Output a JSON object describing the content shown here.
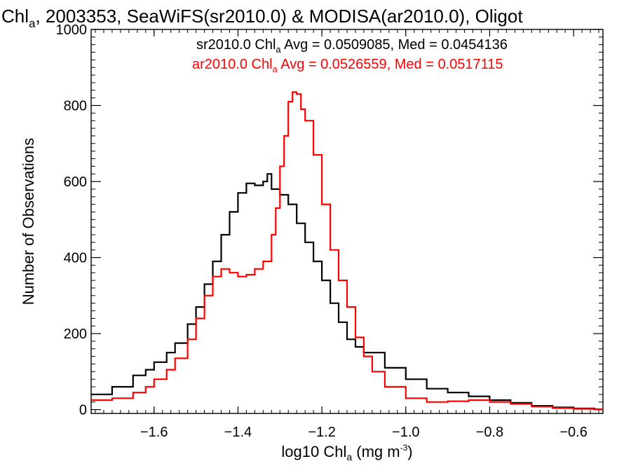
{
  "chart_data": {
    "type": "line",
    "title": {
      "main": "Chl",
      "sub": "a",
      "rest": ", 2003353, SeaWiFS(sr2010.0) & MODISA(ar2010.0), Oligot"
    },
    "xlabel": {
      "pre": "log10 Chl",
      "sub": "a",
      "mid": " (mg m",
      "sup": "-3",
      "post": ")"
    },
    "ylabel": "Number of Observations",
    "xlim": [
      -1.75,
      -0.53
    ],
    "ylim": [
      -10,
      1000
    ],
    "x_ticks": [
      -1.6,
      -1.4,
      -1.2,
      -1.0,
      -0.8,
      -0.6
    ],
    "x_tick_labels": [
      "−1.6",
      "−1.4",
      "−1.2",
      "−1.0",
      "−0.8",
      "−0.6"
    ],
    "y_ticks": [
      0,
      200,
      400,
      600,
      800,
      1000
    ],
    "y_tick_labels": [
      "0",
      "200",
      "400",
      "600",
      "800",
      "1000"
    ],
    "step": "histogram",
    "legend_position": "top-right",
    "series": [
      {
        "name": "sr2010.0",
        "color": "#000000",
        "legend": {
          "pre": "sr2010.0 Chl",
          "sub": "a",
          "post": " Avg = 0.0509085, Med = 0.0454136"
        },
        "points": [
          [
            -1.75,
            40
          ],
          [
            -1.7,
            60
          ],
          [
            -1.65,
            90
          ],
          [
            -1.62,
            105
          ],
          [
            -1.6,
            125
          ],
          [
            -1.57,
            150
          ],
          [
            -1.55,
            175
          ],
          [
            -1.52,
            225
          ],
          [
            -1.5,
            270
          ],
          [
            -1.48,
            330
          ],
          [
            -1.46,
            390
          ],
          [
            -1.44,
            460
          ],
          [
            -1.42,
            520
          ],
          [
            -1.4,
            570
          ],
          [
            -1.38,
            595
          ],
          [
            -1.36,
            590
          ],
          [
            -1.34,
            600
          ],
          [
            -1.33,
            620
          ],
          [
            -1.32,
            580
          ],
          [
            -1.3,
            565
          ],
          [
            -1.28,
            540
          ],
          [
            -1.26,
            490
          ],
          [
            -1.24,
            440
          ],
          [
            -1.22,
            390
          ],
          [
            -1.2,
            340
          ],
          [
            -1.18,
            280
          ],
          [
            -1.16,
            230
          ],
          [
            -1.14,
            185
          ],
          [
            -1.12,
            165
          ],
          [
            -1.1,
            150
          ],
          [
            -1.05,
            110
          ],
          [
            -1.0,
            80
          ],
          [
            -0.95,
            55
          ],
          [
            -0.9,
            45
          ],
          [
            -0.85,
            35
          ],
          [
            -0.8,
            25
          ],
          [
            -0.75,
            18
          ],
          [
            -0.7,
            10
          ],
          [
            -0.65,
            6
          ],
          [
            -0.6,
            3
          ],
          [
            -0.55,
            1
          ]
        ]
      },
      {
        "name": "ar2010.0",
        "color": "#ff0000",
        "legend": {
          "pre": "ar2010.0 Chl",
          "sub": "a",
          "post": " Avg = 0.0526559, Med = 0.0517115"
        },
        "points": [
          [
            -1.75,
            25
          ],
          [
            -1.7,
            30
          ],
          [
            -1.65,
            45
          ],
          [
            -1.62,
            60
          ],
          [
            -1.6,
            80
          ],
          [
            -1.57,
            105
          ],
          [
            -1.55,
            135
          ],
          [
            -1.52,
            185
          ],
          [
            -1.5,
            240
          ],
          [
            -1.48,
            300
          ],
          [
            -1.46,
            350
          ],
          [
            -1.44,
            370
          ],
          [
            -1.42,
            360
          ],
          [
            -1.4,
            350
          ],
          [
            -1.38,
            355
          ],
          [
            -1.36,
            370
          ],
          [
            -1.34,
            390
          ],
          [
            -1.32,
            460
          ],
          [
            -1.31,
            530
          ],
          [
            -1.3,
            640
          ],
          [
            -1.29,
            720
          ],
          [
            -1.28,
            810
          ],
          [
            -1.27,
            835
          ],
          [
            -1.26,
            830
          ],
          [
            -1.25,
            790
          ],
          [
            -1.24,
            760
          ],
          [
            -1.22,
            670
          ],
          [
            -1.2,
            540
          ],
          [
            -1.18,
            420
          ],
          [
            -1.16,
            340
          ],
          [
            -1.14,
            270
          ],
          [
            -1.12,
            190
          ],
          [
            -1.1,
            140
          ],
          [
            -1.08,
            100
          ],
          [
            -1.05,
            60
          ],
          [
            -1.0,
            30
          ],
          [
            -0.95,
            20
          ],
          [
            -0.9,
            22
          ],
          [
            -0.85,
            25
          ],
          [
            -0.8,
            20
          ],
          [
            -0.75,
            15
          ],
          [
            -0.7,
            8
          ],
          [
            -0.65,
            4
          ],
          [
            -0.6,
            2
          ],
          [
            -0.55,
            1
          ]
        ]
      }
    ]
  }
}
